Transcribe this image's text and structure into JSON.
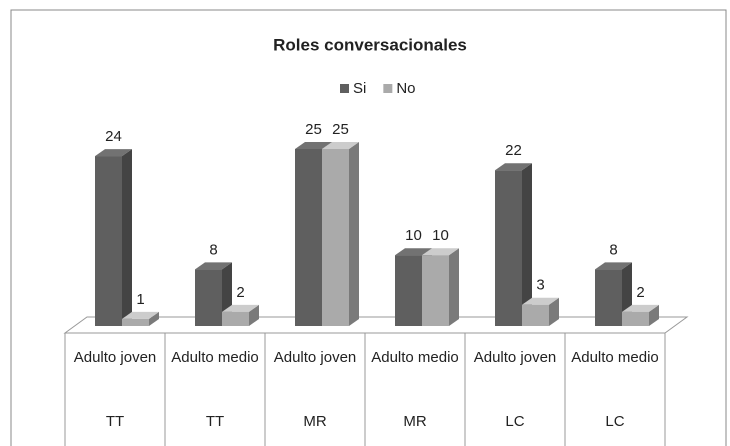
{
  "chart_data": {
    "type": "bar3d",
    "title": "Roles conversacionales",
    "categories": [
      "Adulto joven",
      "Adulto medio",
      "Adulto joven",
      "Adulto medio",
      "Adulto joven",
      "Adulto medio"
    ],
    "groups": [
      "TT",
      "TT",
      "MR",
      "MR",
      "LC",
      "LC"
    ],
    "series": [
      {
        "name": "Si",
        "color": "#5f5f5f",
        "values": [
          24,
          8,
          25,
          10,
          22,
          8
        ]
      },
      {
        "name": "No",
        "color": "#aaaaaa",
        "values": [
          1,
          2,
          25,
          10,
          3,
          2
        ]
      }
    ],
    "legend": "top"
  }
}
